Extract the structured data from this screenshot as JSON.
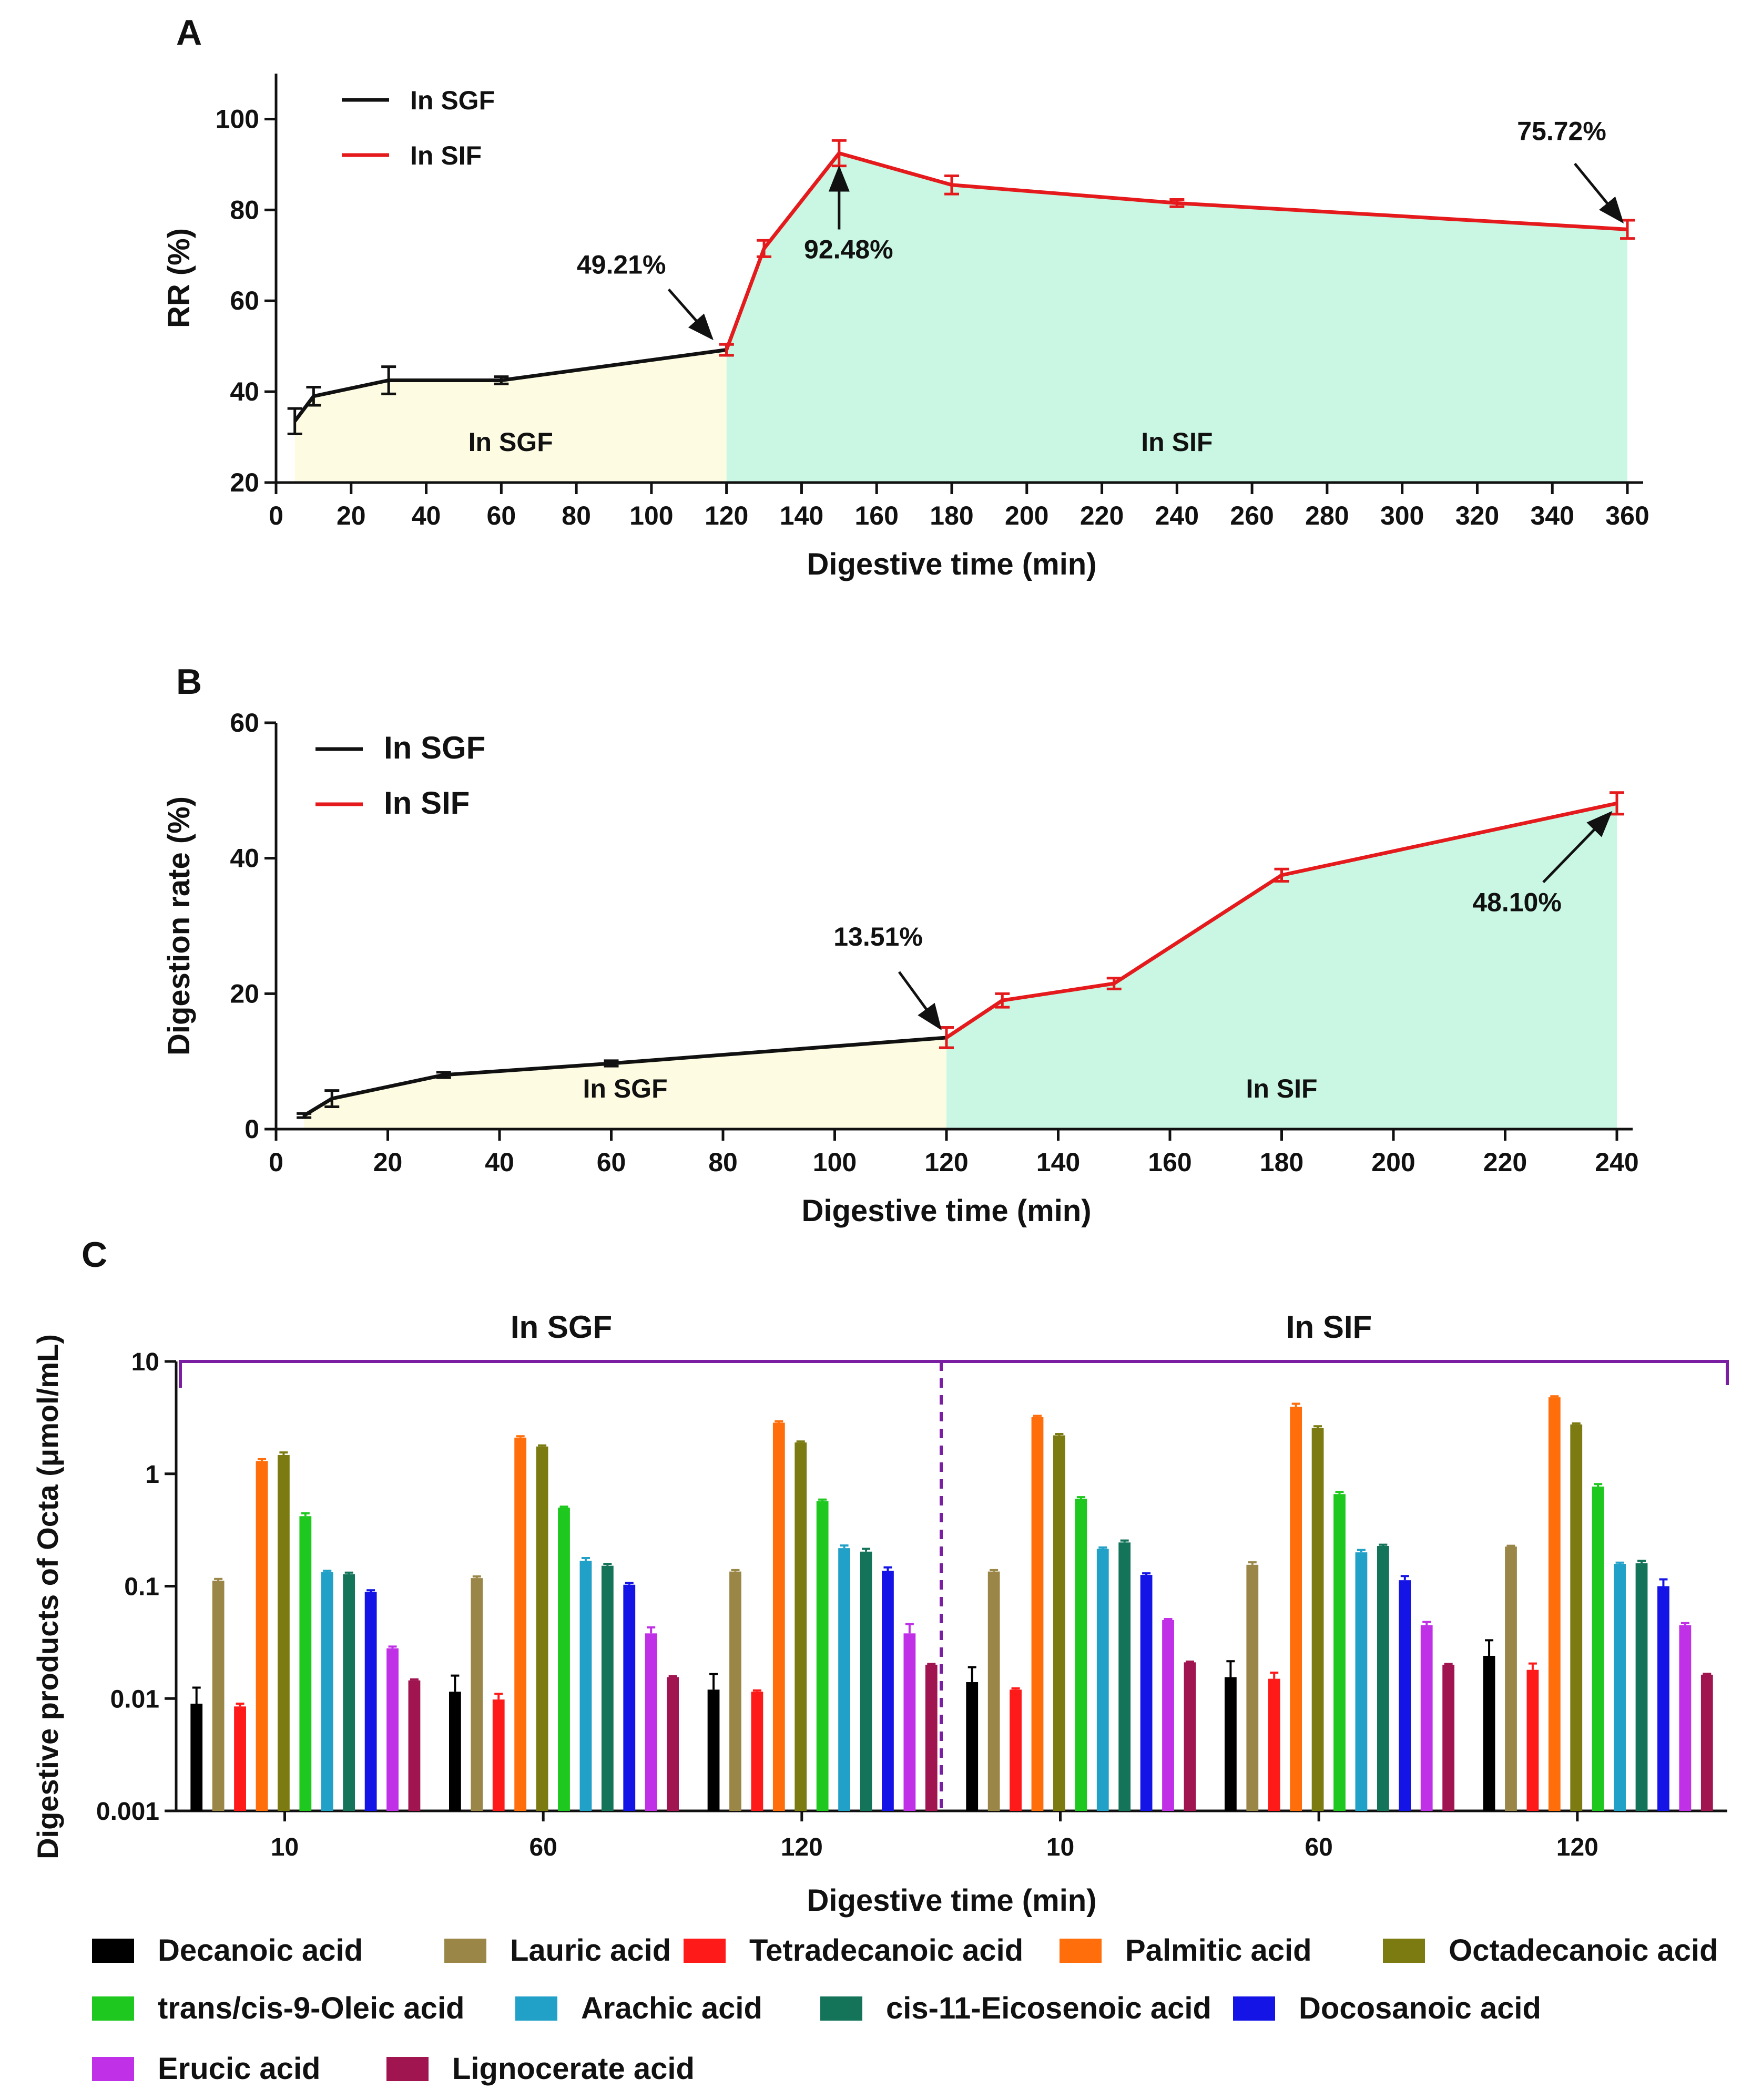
{
  "chart_data": [
    {
      "panel": "A",
      "type": "line",
      "ylabel": "RR (%)",
      "xlabel": "Digestive time (min)",
      "xlim": [
        0,
        360
      ],
      "ylim": [
        20,
        110
      ],
      "xticks": [
        0,
        20,
        40,
        60,
        80,
        100,
        120,
        140,
        160,
        180,
        200,
        220,
        240,
        260,
        280,
        300,
        320,
        340,
        360
      ],
      "yticks": [
        20,
        40,
        60,
        80,
        100
      ],
      "legend": [
        "In SGF",
        "In SIF"
      ],
      "region_labels": [
        "In SGF",
        "In SIF"
      ],
      "series": [
        {
          "name": "In SGF",
          "color": "#111111",
          "x": [
            5,
            10,
            30,
            60,
            120
          ],
          "y": [
            33.5,
            39,
            42.5,
            42.5,
            49.21
          ],
          "err": [
            2.8,
            2.0,
            3.0,
            0.8,
            1.2
          ]
        },
        {
          "name": "In SIF",
          "color": "#e41a1c",
          "x": [
            120,
            130,
            150,
            180,
            240,
            360
          ],
          "y": [
            49.21,
            71.5,
            92.48,
            85.5,
            81.5,
            75.72
          ],
          "err": [
            1.2,
            1.8,
            2.8,
            2.0,
            0.8,
            2.0
          ]
        }
      ],
      "annotations": [
        {
          "text": "49.21%",
          "x": 120,
          "y": 49.21
        },
        {
          "text": "92.48%",
          "x": 150,
          "y": 92.48
        },
        {
          "text": "75.72%",
          "x": 360,
          "y": 75.72
        }
      ]
    },
    {
      "panel": "B",
      "type": "line",
      "ylabel": "Digestion rate (%)",
      "xlabel": "Digestive time (min)",
      "xlim": [
        0,
        240
      ],
      "ylim": [
        0,
        60
      ],
      "xticks": [
        0,
        20,
        40,
        60,
        80,
        100,
        120,
        140,
        160,
        180,
        200,
        220,
        240
      ],
      "yticks": [
        0,
        20,
        40,
        60
      ],
      "legend": [
        "In SGF",
        "In SIF"
      ],
      "region_labels": [
        "In SGF",
        "In SIF"
      ],
      "series": [
        {
          "name": "In SGF",
          "color": "#111111",
          "x": [
            5,
            10,
            30,
            60,
            120
          ],
          "y": [
            2.0,
            4.5,
            8.0,
            9.7,
            13.51
          ],
          "err": [
            0.3,
            1.2,
            0.4,
            0.4,
            1.5
          ]
        },
        {
          "name": "In SIF",
          "color": "#e41a1c",
          "x": [
            120,
            130,
            150,
            180,
            240
          ],
          "y": [
            13.51,
            19.0,
            21.5,
            37.5,
            48.1
          ],
          "err": [
            1.5,
            1.0,
            0.8,
            0.9,
            1.6
          ]
        }
      ],
      "annotations": [
        {
          "text": "13.51%",
          "x": 120,
          "y": 13.51
        },
        {
          "text": "48.10%",
          "x": 240,
          "y": 48.1
        }
      ]
    },
    {
      "panel": "C",
      "type": "bar",
      "scale": "log",
      "ylabel": "Digestive products of Octa (μmol/mL)",
      "xlabel": "Digestive time (min)",
      "ylim": [
        0.001,
        10
      ],
      "yticks": [
        "10",
        "1",
        "0.1",
        "0.01",
        "0.001"
      ],
      "group_headers": [
        "In SGF",
        "In SIF"
      ],
      "categories": [
        "10",
        "60",
        "120",
        "10",
        "60",
        "120"
      ],
      "series": [
        {
          "name": "Decanoic acid",
          "color": "#000000",
          "values": [
            0.009,
            0.0115,
            0.012,
            0.014,
            0.0155,
            0.024
          ],
          "err": [
            0.0035,
            0.0045,
            0.0045,
            0.005,
            0.006,
            0.009
          ]
        },
        {
          "name": "Lauric acid",
          "color": "#9a8748",
          "values": [
            0.112,
            0.118,
            0.135,
            0.135,
            0.155,
            0.225
          ],
          "err": [
            0.004,
            0.004,
            0.004,
            0.004,
            0.008,
            0.004
          ]
        },
        {
          "name": "Tetradecanoic acid",
          "color": "#ff1a1a",
          "values": [
            0.0085,
            0.0098,
            0.0115,
            0.012,
            0.015,
            0.018
          ],
          "err": [
            0.0005,
            0.0012,
            0.0003,
            0.0003,
            0.002,
            0.0025
          ]
        },
        {
          "name": "Palmitic acid",
          "color": "#ff6e0a",
          "values": [
            1.3,
            2.1,
            2.85,
            3.2,
            3.95,
            4.8
          ],
          "err": [
            0.05,
            0.06,
            0.08,
            0.08,
            0.25,
            0.1
          ]
        },
        {
          "name": "Octadecanoic acid",
          "color": "#7b7b12",
          "values": [
            1.47,
            1.75,
            1.9,
            2.2,
            2.55,
            2.75
          ],
          "err": [
            0.08,
            0.04,
            0.04,
            0.06,
            0.1,
            0.06
          ]
        },
        {
          "name": "trans/cis-9-Oleic acid",
          "color": "#1ec81e",
          "values": [
            0.42,
            0.5,
            0.57,
            0.6,
            0.66,
            0.77
          ],
          "err": [
            0.025,
            0.01,
            0.02,
            0.02,
            0.03,
            0.04
          ]
        },
        {
          "name": "Arachic acid",
          "color": "#21a0c8",
          "values": [
            0.133,
            0.168,
            0.218,
            0.215,
            0.2,
            0.158
          ],
          "err": [
            0.004,
            0.01,
            0.012,
            0.006,
            0.01,
            0.004
          ]
        },
        {
          "name": "cis-11-Eicosenoic acid",
          "color": "#14745a",
          "values": [
            0.128,
            0.152,
            0.203,
            0.245,
            0.228,
            0.16
          ],
          "err": [
            0.004,
            0.006,
            0.012,
            0.01,
            0.006,
            0.008
          ]
        },
        {
          "name": "Docosanoic acid",
          "color": "#1414e6",
          "values": [
            0.089,
            0.103,
            0.137,
            0.126,
            0.113,
            0.1
          ],
          "err": [
            0.003,
            0.004,
            0.01,
            0.004,
            0.01,
            0.015
          ]
        },
        {
          "name": "Erucic acid",
          "color": "#c030e6",
          "values": [
            0.028,
            0.038,
            0.038,
            0.05,
            0.045,
            0.045
          ],
          "err": [
            0.001,
            0.005,
            0.008,
            0.001,
            0.003,
            0.002
          ]
        },
        {
          "name": "Lignocerate acid",
          "color": "#a01450",
          "values": [
            0.0145,
            0.0155,
            0.02,
            0.021,
            0.02,
            0.0163
          ],
          "err": [
            0.0003,
            0.0003,
            0.0003,
            0.0003,
            0.0003,
            0.0003
          ]
        }
      ]
    }
  ]
}
